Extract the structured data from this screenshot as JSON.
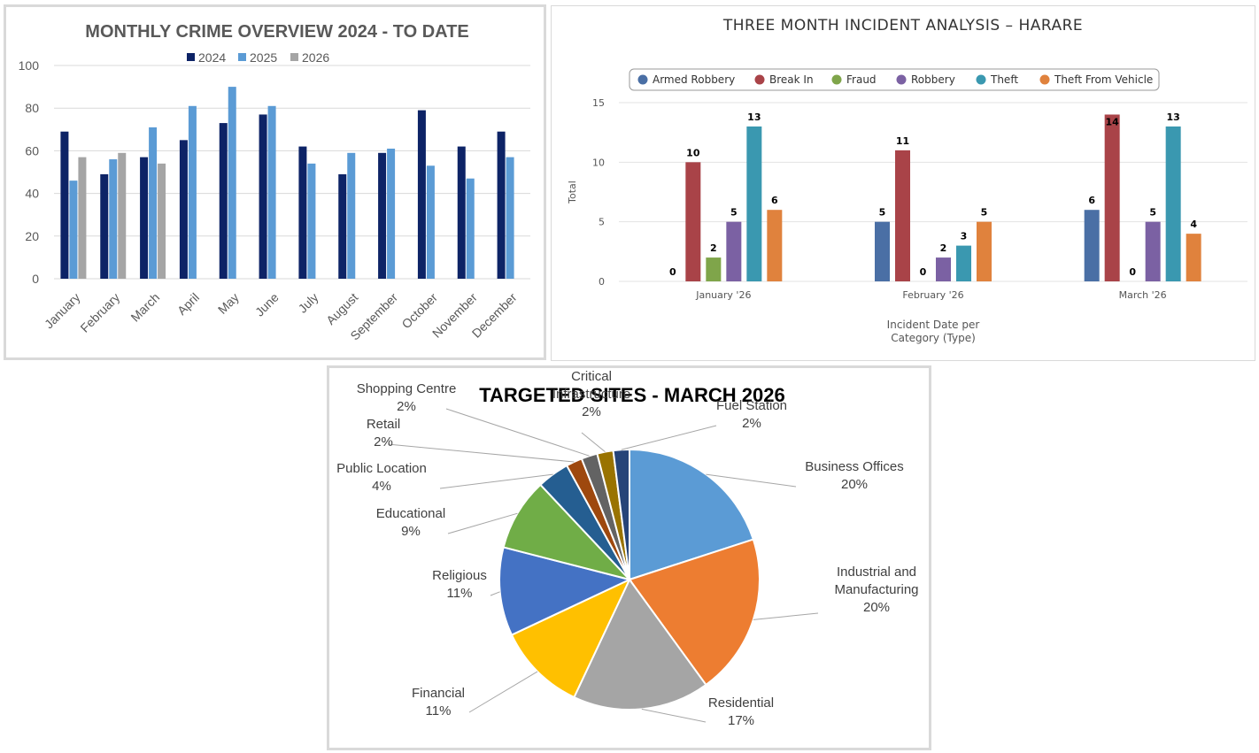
{
  "charts": [
    {
      "title": "MONTHLY CRIME OVERVIEW 2024 - TO DATE",
      "chart_data": {
        "type": "bar",
        "title": "MONTHLY CRIME OVERVIEW 2024 - TO DATE",
        "categories": [
          "January",
          "February",
          "March",
          "April",
          "May",
          "June",
          "July",
          "August",
          "September",
          "October",
          "November",
          "December"
        ],
        "series": [
          {
            "name": "2024",
            "color": "#0d2366",
            "values": [
              69,
              49,
              57,
              65,
              73,
              77,
              62,
              49,
              59,
              79,
              62,
              69
            ]
          },
          {
            "name": "2025",
            "color": "#5b9bd5",
            "values": [
              46,
              56,
              71,
              81,
              90,
              81,
              54,
              59,
              61,
              53,
              47,
              57
            ]
          },
          {
            "name": "2026",
            "color": "#a5a5a5",
            "values": [
              57,
              59,
              54,
              null,
              null,
              null,
              null,
              null,
              null,
              null,
              null,
              null
            ]
          }
        ],
        "ylim": [
          0,
          100
        ],
        "yticks": [
          "0",
          "20",
          "40",
          "60",
          "80",
          "100"
        ],
        "grid": true,
        "legend": "top"
      }
    },
    {
      "title": "THREE MONTH INCIDENT ANALYSIS – HARARE",
      "chart_data": {
        "type": "bar",
        "title": "THREE MONTH INCIDENT ANALYSIS – HARARE",
        "ylabel": "Total",
        "xlabel_lines": [
          "Incident Date per",
          "Category (Type)"
        ],
        "categories": [
          "January '26",
          "February '26",
          "March '26"
        ],
        "series": [
          {
            "name": "Armed Robbery",
            "color": "#4a6fa5",
            "values": [
              0,
              5,
              6
            ]
          },
          {
            "name": "Break In",
            "color": "#a94348",
            "values": [
              10,
              11,
              14
            ]
          },
          {
            "name": "Fraud",
            "color": "#7fa54a",
            "values": [
              2,
              0,
              0
            ]
          },
          {
            "name": "Robbery",
            "color": "#7b61a3",
            "values": [
              5,
              2,
              5
            ]
          },
          {
            "name": "Theft",
            "color": "#3a98b0",
            "values": [
              13,
              3,
              13
            ]
          },
          {
            "name": "Theft From Vehicle",
            "color": "#e0823d",
            "values": [
              6,
              5,
              4
            ]
          }
        ],
        "ylim": [
          0,
          15
        ],
        "yticks": [
          "0",
          "5",
          "10",
          "15"
        ],
        "grid": true,
        "legend": "top"
      }
    },
    {
      "title": "TARGETED SITES - MARCH 2026",
      "chart_data": {
        "type": "pie",
        "title": "TARGETED SITES - MARCH 2026",
        "slices": [
          {
            "name": "Business Offices",
            "label_lines": [
              "Business Offices",
              "20%"
            ],
            "value": 20,
            "color": "#5b9bd5"
          },
          {
            "name": "Industrial and Manufacturing",
            "label_lines": [
              "Industrial and",
              "Manufacturing",
              "20%"
            ],
            "value": 20,
            "color": "#ed7d31"
          },
          {
            "name": "Residential",
            "label_lines": [
              "Residential",
              "17%"
            ],
            "value": 17,
            "color": "#a5a5a5"
          },
          {
            "name": "Financial",
            "label_lines": [
              "Financial",
              "11%"
            ],
            "value": 11,
            "color": "#ffc000"
          },
          {
            "name": "Religious",
            "label_lines": [
              "Religious",
              "11%"
            ],
            "value": 11,
            "color": "#4472c4"
          },
          {
            "name": "Educational",
            "label_lines": [
              "Educational",
              "9%"
            ],
            "value": 9,
            "color": "#70ad47"
          },
          {
            "name": "Public Location",
            "label_lines": [
              "Public Location",
              "4%"
            ],
            "value": 4,
            "color": "#255e91"
          },
          {
            "name": "Retail",
            "label_lines": [
              "Retail",
              "2%"
            ],
            "value": 2,
            "color": "#9e480e"
          },
          {
            "name": "Shopping Centre",
            "label_lines": [
              "Shopping Centre",
              "2%"
            ],
            "value": 2,
            "color": "#636363"
          },
          {
            "name": "Critical Infrastructure",
            "label_lines": [
              "Critical",
              "Infrastructure",
              "2%"
            ],
            "value": 2,
            "color": "#997300"
          },
          {
            "name": "Fuel Station",
            "label_lines": [
              "Fuel Station",
              "2%"
            ],
            "value": 2,
            "color": "#264478"
          }
        ]
      }
    }
  ]
}
